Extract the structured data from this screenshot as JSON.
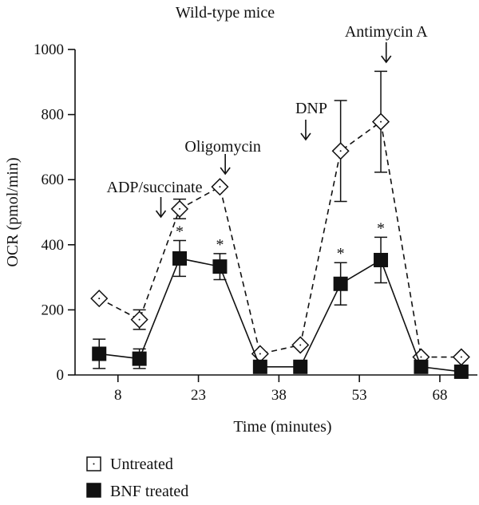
{
  "chart_data": {
    "type": "line",
    "title": "Wild-type mice",
    "xlabel": "Time (minutes)",
    "ylabel": "OCR (pmol/min)",
    "xlim": [
      0,
      75
    ],
    "ylim": [
      0,
      1000
    ],
    "xticks": [
      8,
      23,
      38,
      53,
      68
    ],
    "yticks": [
      0,
      200,
      400,
      600,
      800,
      1000
    ],
    "grid": false,
    "legend_position": "bottom-left",
    "series": [
      {
        "name": "Untreated",
        "marker": "diamond-open",
        "line_style": "dashed",
        "color": "#111111",
        "x": [
          4.5,
          12,
          19.5,
          27,
          34.5,
          42,
          49.5,
          57,
          64.5,
          72
        ],
        "y": [
          235,
          170,
          510,
          578,
          65,
          92,
          688,
          778,
          55,
          55
        ],
        "error": [
          0,
          30,
          30,
          0,
          0,
          0,
          155,
          155,
          0,
          0
        ]
      },
      {
        "name": "BNF treated",
        "marker": "square-filled",
        "line_style": "solid",
        "color": "#111111",
        "x": [
          4.5,
          12,
          19.5,
          27,
          34.5,
          42,
          49.5,
          57,
          64.5,
          72
        ],
        "y": [
          65,
          50,
          358,
          333,
          25,
          25,
          280,
          353,
          25,
          10
        ],
        "error": [
          45,
          30,
          55,
          40,
          0,
          0,
          65,
          70,
          0,
          0
        ]
      }
    ],
    "annotations": [
      {
        "text": "ADP/succinate",
        "x": 16
      },
      {
        "text": "Oligomycin",
        "x": 28
      },
      {
        "text": "DNP",
        "x": 43
      },
      {
        "text": "Antimycin A",
        "x": 58
      }
    ],
    "significance_markers": [
      {
        "text": "*",
        "x": 19.5
      },
      {
        "text": "*",
        "x": 27
      },
      {
        "text": "*",
        "x": 49.5
      },
      {
        "text": "*",
        "x": 57
      }
    ]
  }
}
